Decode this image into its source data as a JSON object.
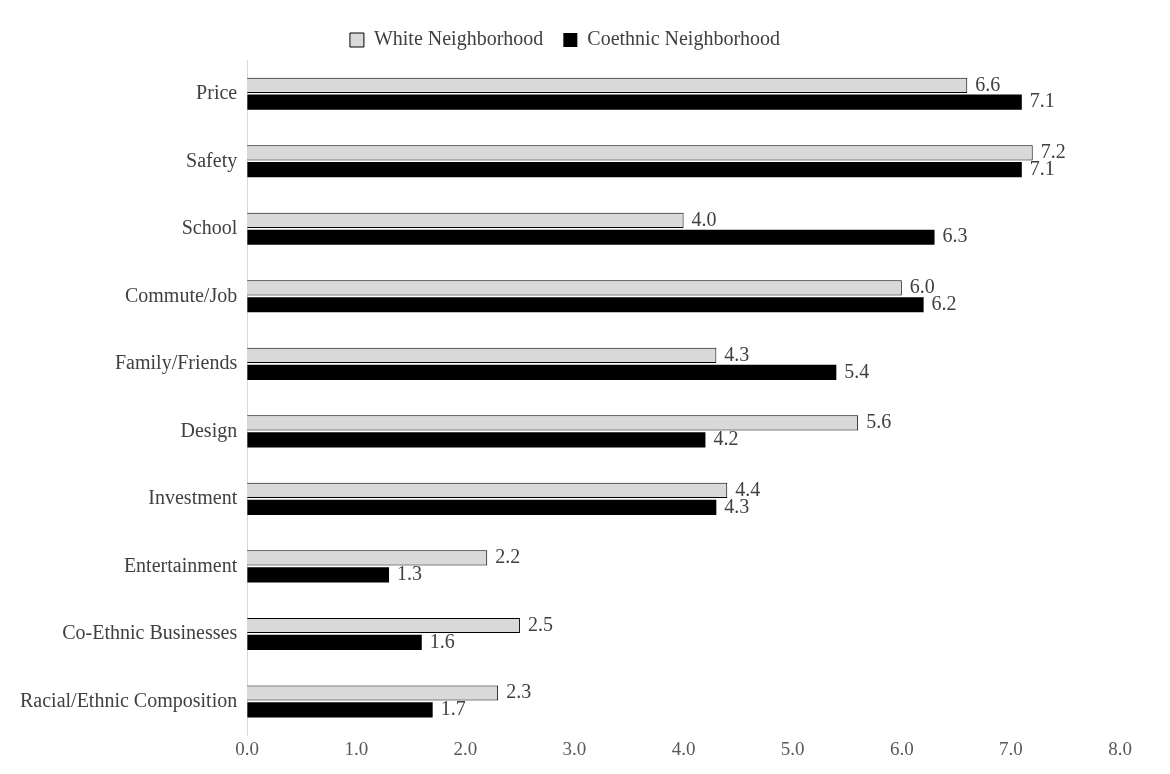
{
  "chart_data": {
    "type": "bar",
    "orientation": "horizontal",
    "categories": [
      "Price",
      "Safety",
      "School",
      "Commute/Job",
      "Family/Friends",
      "Design",
      "Investment",
      "Entertainment",
      "Co-Ethnic Businesses",
      "Racial/Ethnic Composition"
    ],
    "series": [
      {
        "name": "White Neighborhood",
        "color": "#d9d9d9",
        "values": [
          6.6,
          7.2,
          4.0,
          6.0,
          4.3,
          5.6,
          4.4,
          2.2,
          2.5,
          2.3
        ],
        "value_labels": [
          "6.6",
          "7.2",
          "4.0",
          "6.0",
          "4.3",
          "5.6",
          "4.4",
          "2.2",
          "2.5",
          "2.3"
        ]
      },
      {
        "name": "Coethnic Neighborhood",
        "color": "#000000",
        "values": [
          7.1,
          7.1,
          6.3,
          6.2,
          5.4,
          4.2,
          4.3,
          1.3,
          1.6,
          1.7
        ],
        "value_labels": [
          "7.1",
          "7.1",
          "6.3",
          "6.2",
          "5.4",
          "4.2",
          "4.3",
          "1.3",
          "1.6",
          "1.7"
        ]
      }
    ],
    "xlim": [
      0,
      8
    ],
    "xticks": [
      {
        "value": 0,
        "label": "0.0"
      },
      {
        "value": 1,
        "label": "1.0"
      },
      {
        "value": 2,
        "label": "2.0"
      },
      {
        "value": 3,
        "label": "3.0"
      },
      {
        "value": 4,
        "label": "4.0"
      },
      {
        "value": 5,
        "label": "5.0"
      },
      {
        "value": 6,
        "label": "6.0"
      },
      {
        "value": 7,
        "label": "7.0"
      },
      {
        "value": 8,
        "label": "8.0"
      }
    ],
    "grid": false,
    "legend": "top"
  }
}
